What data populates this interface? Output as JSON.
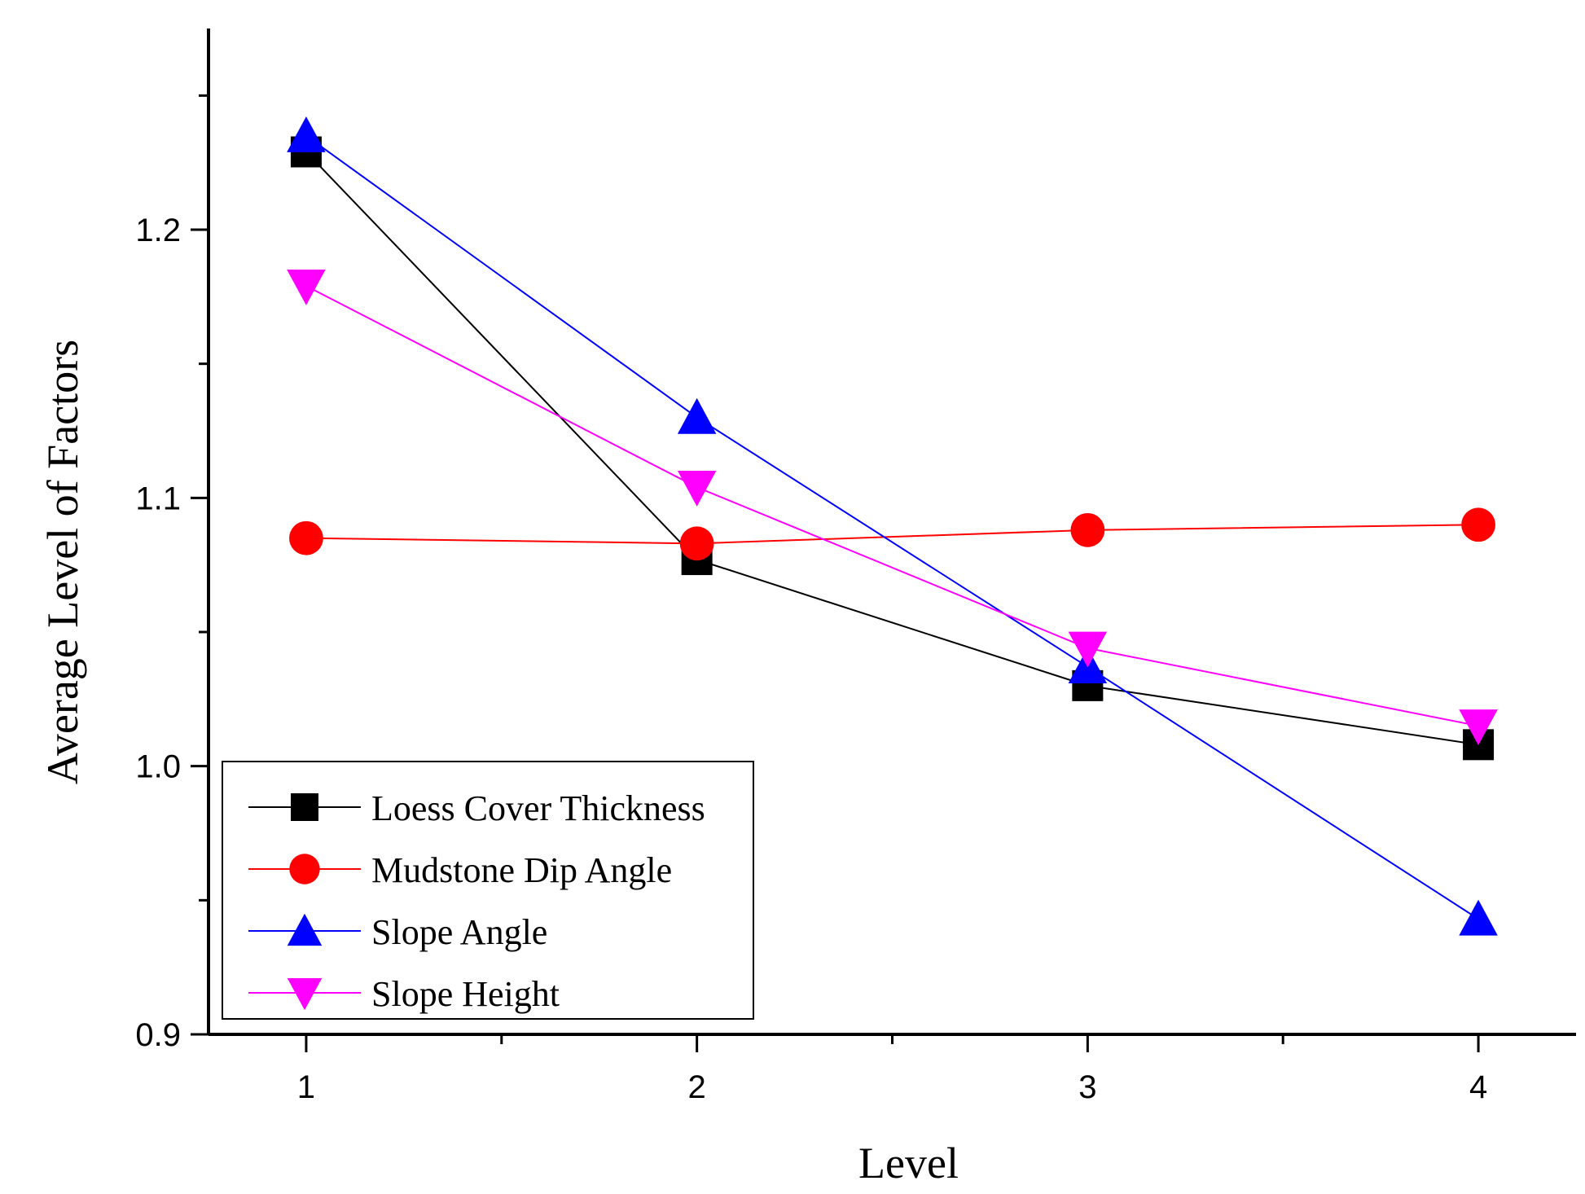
{
  "chart_data": {
    "type": "line",
    "title": "",
    "xlabel": "Level",
    "ylabel": "Average Level of Factors",
    "x": [
      1,
      2,
      3,
      4
    ],
    "x_ticks": [
      "1",
      "2",
      "3",
      "4"
    ],
    "y_ticks": [
      "0.9",
      "1.0",
      "1.1",
      "1.2"
    ],
    "xlim": [
      0.75,
      4.25
    ],
    "ylim": [
      0.9,
      1.275
    ],
    "grid": false,
    "legend_position": "bottom-left",
    "series": [
      {
        "name": "Loess Cover Thickness",
        "values": [
          1.229,
          1.077,
          1.03,
          1.008
        ],
        "color": "#000000",
        "marker": "square"
      },
      {
        "name": "Mudstone Dip Angle",
        "values": [
          1.085,
          1.083,
          1.088,
          1.09
        ],
        "color": "#ff0000",
        "marker": "circle"
      },
      {
        "name": "Slope Angle",
        "values": [
          1.235,
          1.13,
          1.037,
          0.943
        ],
        "color": "#0000ff",
        "marker": "triangle-up"
      },
      {
        "name": "Slope Height",
        "values": [
          1.179,
          1.104,
          1.044,
          1.015
        ],
        "color": "#ff00ff",
        "marker": "triangle-down"
      }
    ]
  }
}
